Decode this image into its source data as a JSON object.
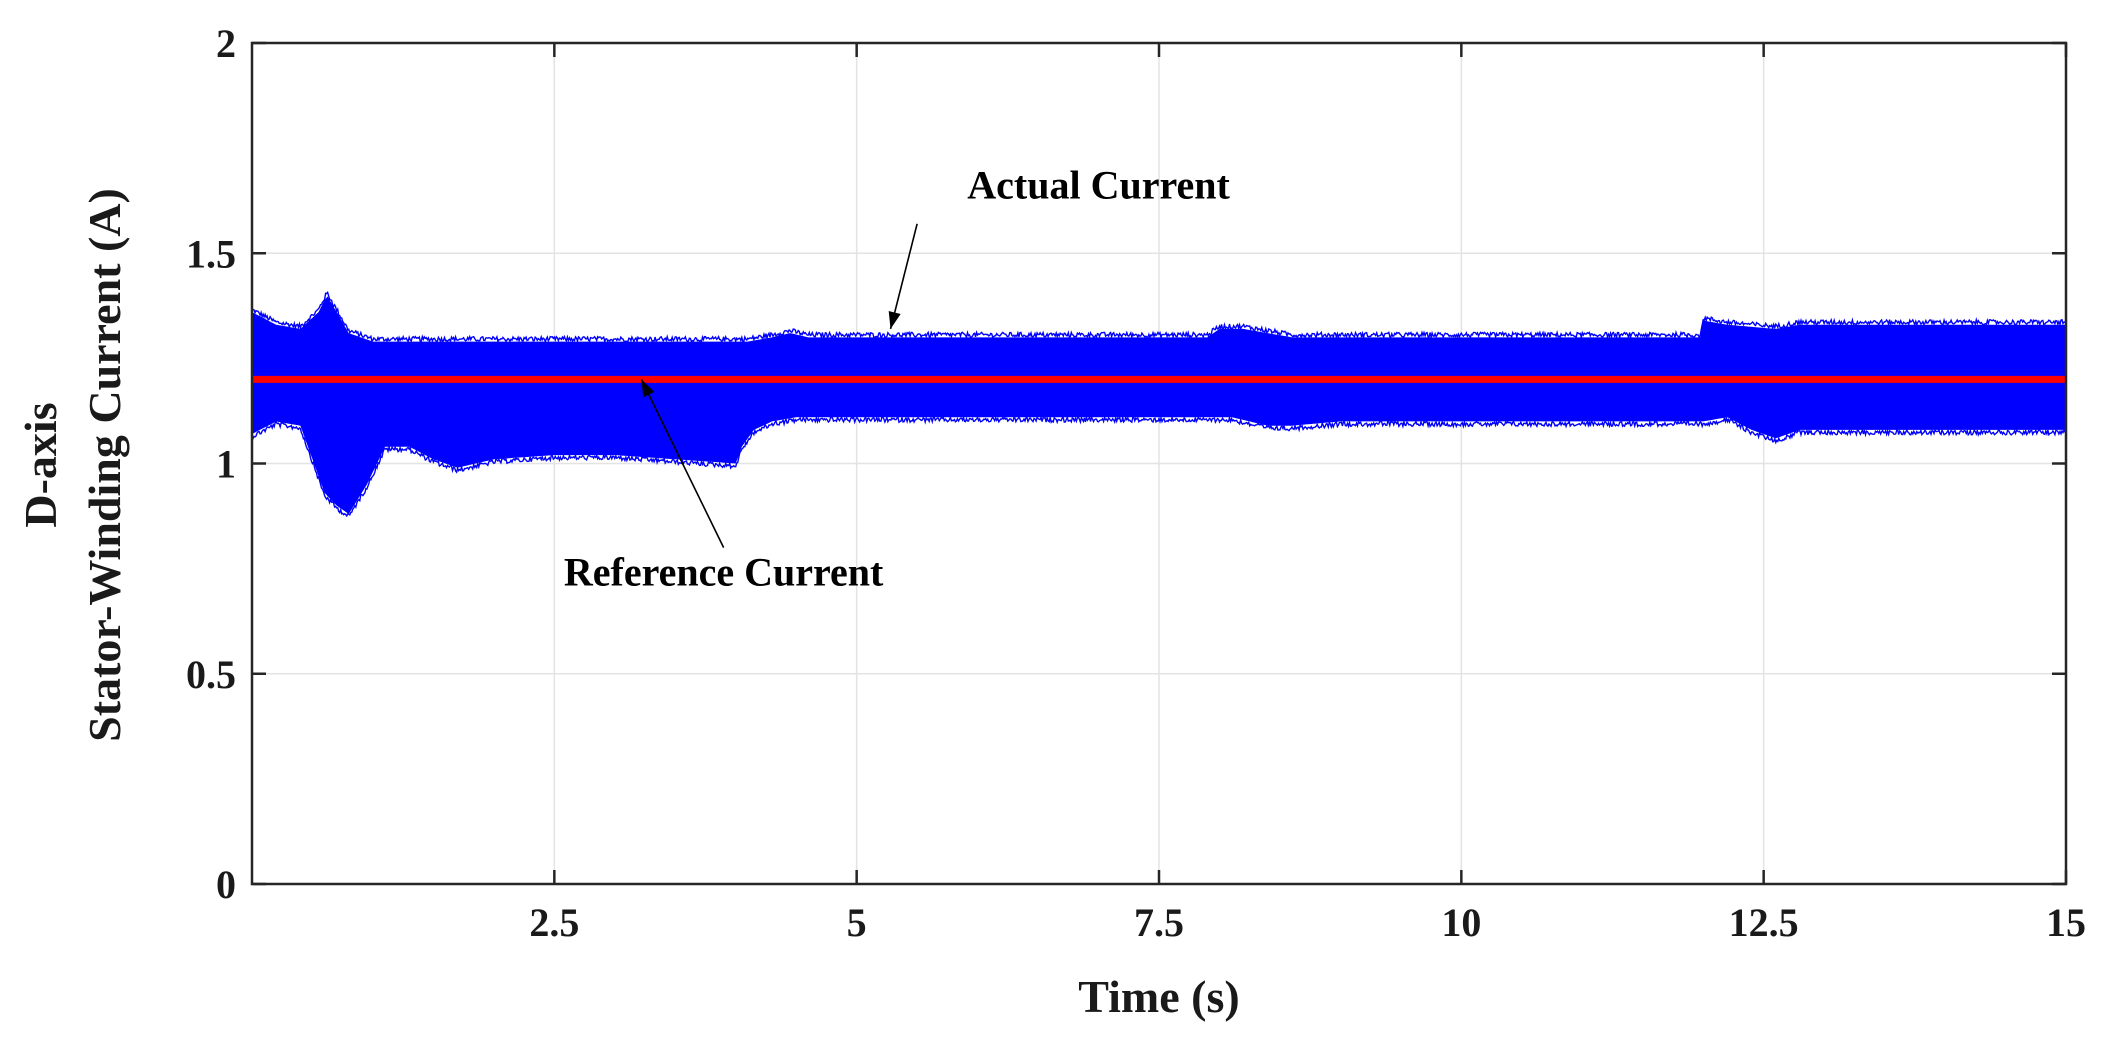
{
  "chart_data": {
    "type": "line",
    "xlabel": "Time (s)",
    "ylabel_lines": [
      "D-axis",
      "Stator-Winding Current (A)"
    ],
    "xlim": [
      0,
      15
    ],
    "ylim": [
      0,
      2
    ],
    "xticks": [
      2.5,
      5,
      7.5,
      10,
      12.5,
      15
    ],
    "xtick_labels": [
      "2.5",
      "5",
      "7.5",
      "10",
      "12.5",
      "15"
    ],
    "yticks": [
      0,
      0.5,
      1,
      1.5,
      2
    ],
    "ytick_labels": [
      "0",
      "0.5",
      "1",
      "1.5",
      "2"
    ],
    "grid": true,
    "series": [
      {
        "name": "Actual Current",
        "color": "#0000ff",
        "style": "dense oscillating band",
        "upper_envelope": {
          "x": [
            0,
            0.2,
            0.4,
            0.55,
            0.62,
            0.7,
            0.8,
            1.0,
            2.0,
            3.0,
            4.0,
            4.1,
            4.3,
            4.45,
            4.6,
            5.0,
            6.0,
            7.0,
            7.9,
            8.0,
            8.2,
            8.4,
            8.6,
            9.0,
            10.0,
            11.0,
            11.98,
            12.0,
            12.2,
            12.6,
            12.8,
            13.0,
            14.0,
            15.0
          ],
          "y": [
            1.36,
            1.33,
            1.32,
            1.36,
            1.4,
            1.36,
            1.31,
            1.29,
            1.29,
            1.29,
            1.29,
            1.29,
            1.3,
            1.31,
            1.3,
            1.3,
            1.3,
            1.3,
            1.3,
            1.32,
            1.32,
            1.31,
            1.3,
            1.3,
            1.3,
            1.3,
            1.3,
            1.34,
            1.33,
            1.32,
            1.33,
            1.33,
            1.33,
            1.33
          ]
        },
        "lower_envelope": {
          "x": [
            0,
            0.2,
            0.4,
            0.45,
            0.6,
            0.7,
            0.8,
            0.95,
            1.1,
            1.3,
            1.5,
            1.7,
            2.0,
            2.5,
            3.0,
            3.5,
            4.0,
            4.05,
            4.15,
            4.3,
            4.5,
            5.0,
            6.0,
            7.0,
            7.9,
            8.1,
            8.4,
            8.6,
            9.0,
            10.0,
            11.0,
            12.0,
            12.2,
            12.4,
            12.6,
            12.8,
            13.0,
            14.0,
            15.0
          ],
          "y": [
            1.07,
            1.1,
            1.09,
            1.05,
            0.93,
            0.9,
            0.88,
            0.95,
            1.04,
            1.04,
            1.01,
            0.99,
            1.01,
            1.02,
            1.02,
            1.01,
            1.0,
            1.04,
            1.08,
            1.1,
            1.11,
            1.11,
            1.11,
            1.11,
            1.11,
            1.11,
            1.09,
            1.09,
            1.1,
            1.1,
            1.1,
            1.1,
            1.11,
            1.08,
            1.06,
            1.08,
            1.08,
            1.08,
            1.08
          ]
        }
      },
      {
        "name": "Reference Current",
        "color": "#ff0000",
        "x": [
          0,
          15
        ],
        "y": [
          1.2,
          1.2
        ]
      }
    ],
    "annotations": [
      {
        "text": "Actual Current",
        "text_x": 7.0,
        "text_y": 1.63,
        "arrow_from": [
          5.5,
          1.57
        ],
        "arrow_to": [
          5.28,
          1.32
        ]
      },
      {
        "text": "Reference Current",
        "text_x": 3.9,
        "text_y": 0.71,
        "arrow_from": [
          3.9,
          0.8
        ],
        "arrow_to": [
          3.22,
          1.2
        ]
      }
    ]
  }
}
